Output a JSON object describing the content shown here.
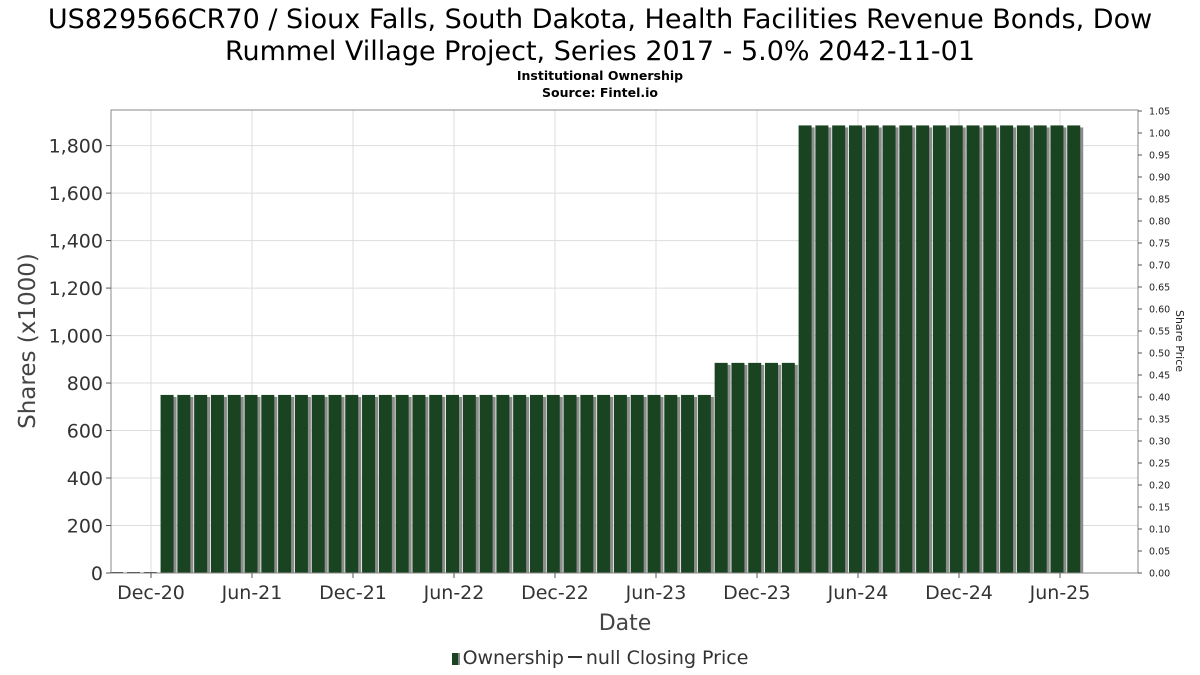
{
  "title_line1": "US829566CR70 / Sioux Falls, South Dakota, Health Facilities Revenue Bonds, Dow",
  "title_line2": "Rummel Village Project, Series 2017 - 5.0% 2042-11-01",
  "subtitle": "Institutional Ownership",
  "source": "Source: Fintel.io",
  "legend": {
    "ownership": "Ownership",
    "price": "null Closing Price"
  },
  "colors": {
    "bar": "#1a4321",
    "bar_shadow": "#8c8c8c",
    "grid": "#dddddd",
    "axis": "#555555"
  },
  "chart_data": {
    "type": "bar",
    "title": "US829566CR70 / Sioux Falls, South Dakota, Health Facilities Revenue Bonds, Dow Rummel Village Project, Series 2017 - 5.0% 2042-11-01",
    "xlabel": "Date",
    "ylabel": "Shares (x1000)",
    "y2label": "Share Price",
    "ylim": [
      0,
      1950
    ],
    "y2lim": [
      0,
      1.05
    ],
    "yticks": [
      "0",
      "200",
      "400",
      "600",
      "800",
      "1,000",
      "1,200",
      "1,400",
      "1,600",
      "1,800"
    ],
    "y2ticks": [
      "0.00",
      "0.05",
      "0.10",
      "0.15",
      "0.20",
      "0.25",
      "0.30",
      "0.35",
      "0.40",
      "0.45",
      "0.50",
      "0.55",
      "0.60",
      "0.65",
      "0.70",
      "0.75",
      "0.80",
      "0.85",
      "0.90",
      "0.95",
      "1.00",
      "1.05"
    ],
    "xticks": [
      "Dec-20",
      "Jun-21",
      "Dec-21",
      "Jun-22",
      "Dec-22",
      "Jun-23",
      "Dec-23",
      "Jun-24",
      "Dec-24",
      "Jun-25"
    ],
    "series": [
      {
        "name": "Ownership",
        "values": [
          0,
          0,
          0,
          750,
          750,
          750,
          750,
          750,
          750,
          750,
          750,
          750,
          750,
          750,
          750,
          750,
          750,
          750,
          750,
          750,
          750,
          750,
          750,
          750,
          750,
          750,
          750,
          750,
          750,
          750,
          750,
          750,
          750,
          750,
          750,
          750,
          885,
          885,
          885,
          885,
          885,
          1885,
          1885,
          1885,
          1885,
          1885,
          1885,
          1885,
          1885,
          1885,
          1885,
          1885,
          1885,
          1885,
          1885,
          1885,
          1885,
          1885
        ]
      },
      {
        "name": "null Closing Price",
        "values": []
      }
    ]
  }
}
